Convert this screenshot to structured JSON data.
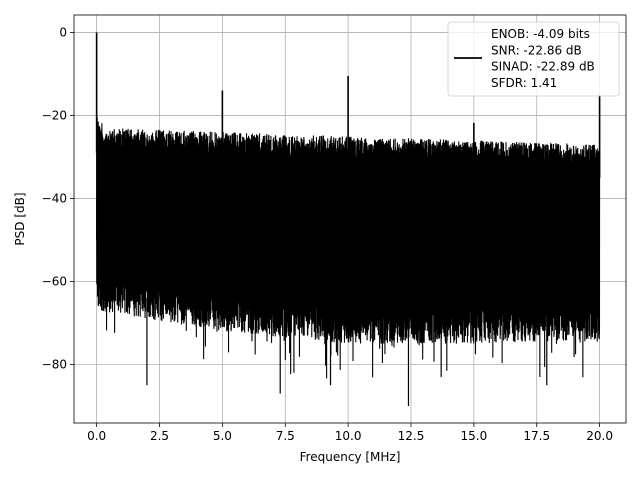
{
  "chart_data": {
    "type": "line",
    "title": "",
    "xlabel": "Frequency [MHz]",
    "ylabel": "PSD [dB]",
    "xlim": [
      -0.9,
      21.05
    ],
    "ylim": [
      -94.1,
      4.2
    ],
    "xticks": [
      0.0,
      2.5,
      5.0,
      7.5,
      10.0,
      12.5,
      15.0,
      17.5,
      20.0
    ],
    "xtick_labels": [
      "0.0",
      "2.5",
      "5.0",
      "7.5",
      "10.0",
      "12.5",
      "15.0",
      "17.5",
      "20.0"
    ],
    "yticks": [
      0,
      -20,
      -40,
      -60,
      -80
    ],
    "ytick_labels": [
      "0",
      "−20",
      "−40",
      "−60",
      "−80"
    ],
    "grid": true,
    "legend_position": "top-right",
    "series": [
      {
        "name": "ENOB: -4.09 bits\nSNR: -22.86 dB\nSINAD: -22.89 dB\nSFDR: 1.41",
        "color": "#000000",
        "x_range": [
          0,
          20
        ],
        "noise_ceiling": [
          [
            0.0,
            -21
          ],
          [
            0.5,
            -23
          ],
          [
            5,
            -24
          ],
          [
            10,
            -25
          ],
          [
            15,
            -26
          ],
          [
            20,
            -27
          ]
        ],
        "noise_floor_typical": [
          [
            0.0,
            -62
          ],
          [
            5,
            -67
          ],
          [
            10,
            -70
          ],
          [
            15,
            -70
          ],
          [
            20,
            -69
          ]
        ],
        "spikes": [
          {
            "x": 0.0,
            "y": 0
          },
          {
            "x": 5.0,
            "y": -14
          },
          {
            "x": 10.0,
            "y": -10.5
          },
          {
            "x": 15.0,
            "y": -21.8
          },
          {
            "x": 20.0,
            "y": -15
          }
        ],
        "deep_notches": [
          {
            "x": 2.0,
            "y": -85
          },
          {
            "x": 7.3,
            "y": -87
          },
          {
            "x": 9.3,
            "y": -85
          },
          {
            "x": 12.4,
            "y": -90
          },
          {
            "x": 13.7,
            "y": -83
          },
          {
            "x": 17.9,
            "y": -85
          }
        ]
      }
    ],
    "legend_lines": [
      "ENOB: -4.09 bits",
      "SNR: -22.86 dB",
      "SINAD: -22.89 dB",
      "SFDR: 1.41"
    ]
  }
}
